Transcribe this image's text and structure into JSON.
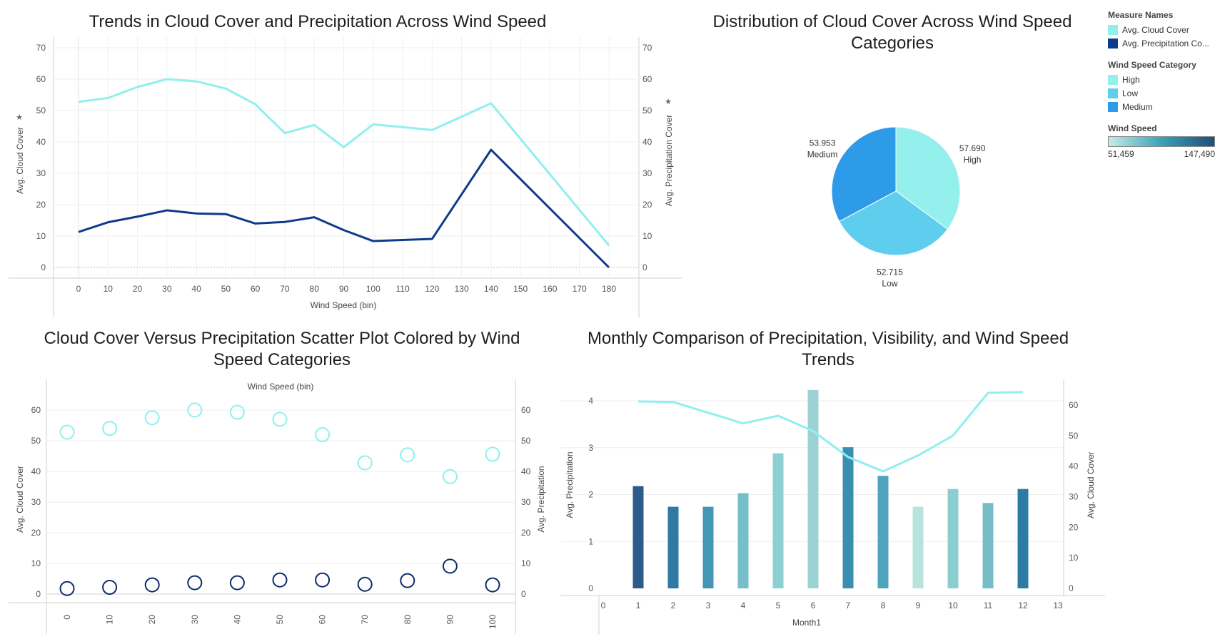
{
  "titles": {
    "line": "Trends in Cloud Cover and Precipitation Across Wind Speed",
    "pie": "Distribution of Cloud Cover Across Wind Speed Categories",
    "scatter": "Cloud Cover Versus Precipitation Scatter Plot Colored by Wind Speed Categories",
    "monthly": "Monthly Comparison of Precipitation, Visibility, and Wind Speed Trends"
  },
  "legend": {
    "measure_names": {
      "title": "Measure Names",
      "items": [
        {
          "label": "Avg. Cloud Cover",
          "color": "#8ff0ee"
        },
        {
          "label": "Avg. Precipitation Co...",
          "color": "#0e3a8c"
        }
      ]
    },
    "wind_category": {
      "title": "Wind Speed Category",
      "items": [
        {
          "label": "High",
          "color": "#93f0ec"
        },
        {
          "label": "Low",
          "color": "#5fcdee"
        },
        {
          "label": "Medium",
          "color": "#2e9be9"
        }
      ]
    },
    "wind_speed": {
      "title": "Wind Speed",
      "min_label": "51,459",
      "max_label": "147,490",
      "colors": [
        "#c4ebe5",
        "#3aa3b8",
        "#1f4e79"
      ]
    }
  },
  "chart_data": [
    {
      "type": "line",
      "title": "Trends in Cloud Cover and Precipitation Across Wind Speed",
      "xlabel": "Wind Speed (bin)",
      "ylabel": "Avg. Cloud Cover",
      "ylabel_right": "Avg. Precipitation Cover",
      "x_ticks": [
        0,
        10,
        20,
        30,
        40,
        50,
        60,
        70,
        80,
        90,
        100,
        110,
        120,
        130,
        140,
        150,
        160,
        170,
        180
      ],
      "y_ticks": [
        0,
        10,
        20,
        30,
        40,
        50,
        60,
        70
      ],
      "ylim": [
        0,
        70
      ],
      "series": [
        {
          "name": "Avg. Cloud Cover",
          "color": "#8ff0ee",
          "x": [
            0,
            10,
            20,
            30,
            40,
            50,
            60,
            70,
            80,
            90,
            100,
            120,
            140,
            180
          ],
          "values": [
            52.8,
            54.0,
            57.5,
            60.0,
            59.3,
            57.0,
            52.0,
            42.8,
            45.4,
            38.3,
            45.6,
            43.8,
            52.3,
            7.0
          ]
        },
        {
          "name": "Avg. Precipitation Co...",
          "color": "#0e3a8c",
          "x": [
            0,
            10,
            20,
            30,
            40,
            50,
            60,
            70,
            80,
            90,
            100,
            120,
            140,
            180
          ],
          "values": [
            11.3,
            14.4,
            16.2,
            18.2,
            17.2,
            17.0,
            14.0,
            14.5,
            16.0,
            11.9,
            8.4,
            9.1,
            37.5,
            0.0
          ]
        }
      ]
    },
    {
      "type": "pie",
      "title": "Distribution of Cloud Cover Across Wind Speed Categories",
      "slices": [
        {
          "category": "High",
          "value": 57.69,
          "label": "57.690",
          "color": "#93f0ec"
        },
        {
          "category": "Low",
          "value": 52.715,
          "label": "52.715",
          "color": "#5fcdee"
        },
        {
          "category": "Medium",
          "value": 53.953,
          "label": "53.953",
          "color": "#2e9be9"
        }
      ]
    },
    {
      "type": "scatter",
      "title": "Cloud Cover Versus Precipitation Scatter Plot Colored by Wind Speed Categories",
      "xlabel": "Wind Speed (bin)",
      "ylabel": "Avg. Cloud Cover",
      "ylabel_right": "Avg. Precipitation",
      "x_ticks": [
        0,
        10,
        20,
        30,
        40,
        50,
        60,
        70,
        80,
        90,
        100
      ],
      "y_ticks": [
        0,
        10,
        20,
        30,
        40,
        50,
        60
      ],
      "ylim": [
        -2,
        65
      ],
      "series": [
        {
          "name": "Avg. Cloud Cover",
          "color": "#8ff0ee",
          "x": [
            0,
            10,
            20,
            30,
            40,
            50,
            60,
            70,
            80,
            90,
            100
          ],
          "values": [
            52.8,
            54.0,
            57.5,
            60.0,
            59.3,
            57.0,
            52.0,
            42.8,
            45.4,
            38.3,
            45.6
          ]
        },
        {
          "name": "Avg. Precipitation",
          "color": "#0e2a6b",
          "x": [
            0,
            10,
            20,
            30,
            40,
            50,
            60,
            70,
            80,
            90,
            100
          ],
          "values": [
            1.8,
            2.2,
            3.0,
            3.7,
            3.7,
            4.6,
            4.6,
            3.2,
            4.4,
            9.1,
            3.0
          ]
        }
      ]
    },
    {
      "type": "bar",
      "title": "Monthly Comparison of Precipitation, Visibility, and Wind Speed Trends",
      "xlabel": "Month1",
      "ylabel": "Avg. Precipitation",
      "ylabel_right": "Avg. Cloud Cover",
      "x_ticks": [
        0,
        1,
        2,
        3,
        4,
        5,
        6,
        7,
        8,
        9,
        10,
        11,
        12,
        13
      ],
      "y_ticks": [
        0,
        1,
        2,
        3,
        4
      ],
      "y_right_ticks": [
        0,
        10,
        20,
        30,
        40,
        50,
        60
      ],
      "ylim": [
        0,
        4.3
      ],
      "ylim_right": [
        0,
        66
      ],
      "categories": [
        1,
        2,
        3,
        4,
        5,
        6,
        7,
        8,
        9,
        10,
        11,
        12
      ],
      "values": [
        2.18,
        1.74,
        1.74,
        2.03,
        2.88,
        4.23,
        3.01,
        2.4,
        1.74,
        2.12,
        1.82,
        2.12
      ],
      "bar_colors": [
        "#2d5b8a",
        "#2f79a3",
        "#4397b4",
        "#76bfc9",
        "#8ecfd4",
        "#9dd2d4",
        "#3a8fb0",
        "#4fa4bd",
        "#b8e3dc",
        "#8ccdd2",
        "#76bdc8",
        "#2d7aa4"
      ],
      "line": {
        "name": "Avg. Cloud Cover",
        "color": "#8ff0ee",
        "values": [
          61.2,
          61.0,
          57.5,
          54.0,
          56.5,
          51.5,
          43.0,
          38.3,
          43.5,
          50.0,
          64.0,
          64.3
        ]
      }
    }
  ]
}
